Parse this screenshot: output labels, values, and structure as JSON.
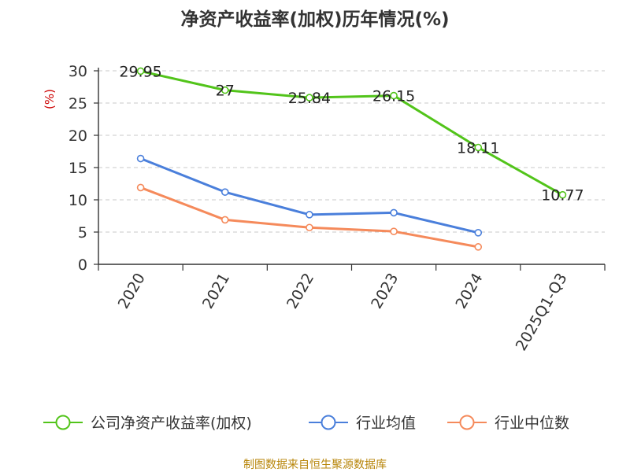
{
  "chart_data": {
    "type": "line",
    "title": "净资产收益率(加权)历年情况(%)",
    "ylabel": "(%)",
    "xlabel": "",
    "categories": [
      "2020",
      "2021",
      "2022",
      "2023",
      "2024",
      "2025Q1-Q3"
    ],
    "ylim": [
      0,
      30
    ],
    "yticks": [
      0,
      5,
      10,
      15,
      20,
      25,
      30
    ],
    "grid": true,
    "legend_position": "bottom",
    "series": [
      {
        "name": "公司净资产收益率(加权)",
        "color": "#52c41a",
        "values": [
          29.95,
          27,
          25.84,
          26.15,
          18.11,
          10.77
        ],
        "labels": [
          "29.95",
          "27",
          "25.84",
          "26.15",
          "18.11",
          "10.77"
        ]
      },
      {
        "name": "行业均值",
        "color": "#4a7fdb",
        "values": [
          16.4,
          11.2,
          7.7,
          8.0,
          4.9,
          null
        ]
      },
      {
        "name": "行业中位数",
        "color": "#f58a5b",
        "values": [
          11.9,
          6.9,
          5.7,
          5.1,
          2.7,
          null
        ]
      }
    ],
    "source": "制图数据来自恒生聚源数据库"
  }
}
